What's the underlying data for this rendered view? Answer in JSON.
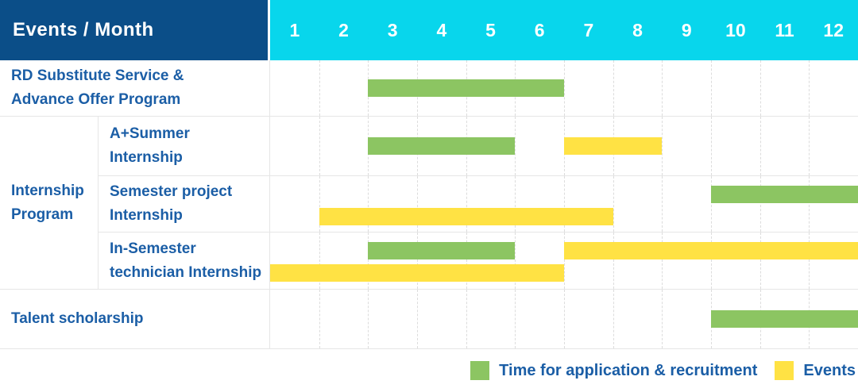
{
  "header": {
    "corner_label": "Events / Month",
    "months": [
      "1",
      "2",
      "3",
      "4",
      "5",
      "6",
      "7",
      "8",
      "9",
      "10",
      "11",
      "12"
    ]
  },
  "colors": {
    "header_bg": "#0B4E88",
    "months_bg": "#08D6EC",
    "application_green": "#8CC562",
    "events_yellow": "#FFE244",
    "label_text": "#1B5EA6",
    "grid_line": "#E6E6E6",
    "grid_dash": "#DCDCDC"
  },
  "group_cell": {
    "label": "Internship Program",
    "label_lines": [
      "Internship",
      "Program"
    ]
  },
  "chart_data": {
    "type": "gantt",
    "x_axis": {
      "title": "Month",
      "ticks": [
        "1",
        "2",
        "3",
        "4",
        "5",
        "6",
        "7",
        "8",
        "9",
        "10",
        "11",
        "12"
      ],
      "range": [
        1,
        12
      ]
    },
    "rows": [
      {
        "label": "RD Substitute Service & Advance Offer Program",
        "label_lines": [
          "RD Substitute Service &",
          "Advance Offer Program"
        ],
        "group": null,
        "bars": [
          {
            "series": "Time for application & recruitment",
            "kind": "application",
            "start_month": 3,
            "end_month": 6,
            "line": "center"
          }
        ]
      },
      {
        "label": "A+Summer Internship",
        "label_lines": [
          "A+Summer",
          "Internship"
        ],
        "group": "Internship Program",
        "bars": [
          {
            "series": "Time for application & recruitment",
            "kind": "application",
            "start_month": 3,
            "end_month": 5,
            "line": "center"
          },
          {
            "series": "Events",
            "kind": "event",
            "start_month": 7,
            "end_month": 8,
            "line": "center"
          }
        ]
      },
      {
        "label": "Semester project Internship",
        "label_lines": [
          "Semester project",
          "Internship"
        ],
        "group": "Internship Program",
        "bars": [
          {
            "series": "Time for application & recruitment",
            "kind": "application",
            "start_month": 10,
            "end_month": 12,
            "line": "top"
          },
          {
            "series": "Events",
            "kind": "event",
            "start_month": 2,
            "end_month": 7,
            "line": "bottom"
          }
        ]
      },
      {
        "label": "In-Semester technician Internship",
        "label_lines": [
          "In-Semester",
          "technician Internship"
        ],
        "group": "Internship Program",
        "bars": [
          {
            "series": "Time for application & recruitment",
            "kind": "application",
            "start_month": 3,
            "end_month": 5,
            "line": "top"
          },
          {
            "series": "Events",
            "kind": "event",
            "start_month": 7,
            "end_month": 12,
            "line": "top"
          },
          {
            "series": "Events",
            "kind": "event",
            "start_month": 1,
            "end_month": 6,
            "line": "bottom"
          }
        ]
      },
      {
        "label": "Talent scholarship",
        "label_lines": [
          "Talent scholarship"
        ],
        "group": null,
        "bars": [
          {
            "series": "Time for application & recruitment",
            "kind": "application",
            "start_month": 10,
            "end_month": 12,
            "line": "center"
          }
        ]
      }
    ]
  },
  "legend": {
    "items": [
      {
        "label": "Time for application & recruitment",
        "kind": "application",
        "color": "#8CC562"
      },
      {
        "label": "Events",
        "kind": "event",
        "color": "#FFE244"
      }
    ]
  }
}
